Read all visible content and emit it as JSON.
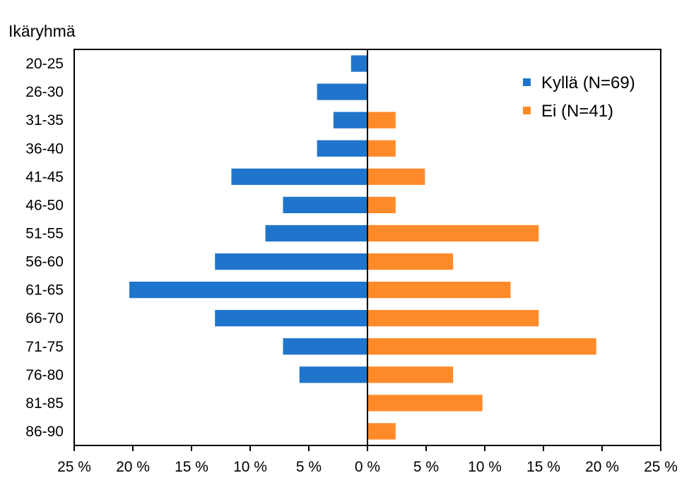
{
  "chart_data": {
    "type": "bar",
    "orientation": "horizontal",
    "layout": "diverging",
    "ylabel": "Ikäryhmä",
    "categories": [
      "20-25",
      "26-30",
      "31-35",
      "36-40",
      "41-45",
      "46-50",
      "51-55",
      "56-60",
      "61-65",
      "66-70",
      "71-75",
      "76-80",
      "81-85",
      "86-90"
    ],
    "series": [
      {
        "name": "Kyllä (N=69)",
        "color": "#1f75cc",
        "side": "left",
        "values": [
          1.4,
          4.3,
          2.9,
          4.3,
          11.6,
          7.2,
          8.7,
          13.0,
          20.3,
          13.0,
          7.2,
          5.8,
          0,
          0
        ]
      },
      {
        "name": "Ei (N=41)",
        "color": "#ff8a2a",
        "side": "right",
        "values": [
          0,
          0,
          2.4,
          2.4,
          4.9,
          2.4,
          14.6,
          7.3,
          12.2,
          14.6,
          19.5,
          7.3,
          9.8,
          2.4
        ]
      }
    ],
    "xlim": [
      -25,
      25
    ],
    "xticks": [
      -25,
      -20,
      -15,
      -10,
      -5,
      0,
      5,
      10,
      15,
      20,
      25
    ],
    "xtick_labels": [
      "25 %",
      "20 %",
      "15 %",
      "10 %",
      "5 %",
      "0 %",
      "5 %",
      "10 %",
      "15 %",
      "20 %",
      "25 %"
    ],
    "legend_position": "top-right",
    "grid": false
  }
}
